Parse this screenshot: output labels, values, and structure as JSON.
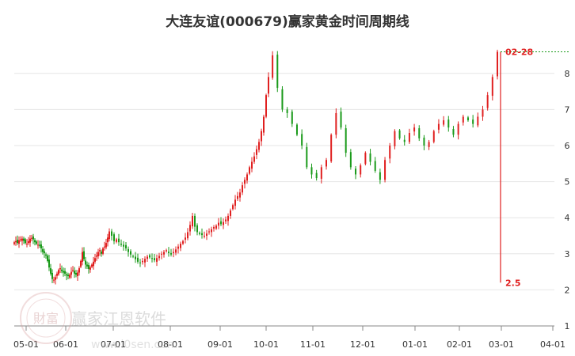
{
  "chart_data": {
    "type": "candlestick",
    "title": "大连友谊(000679)赢家黄金时间周期线",
    "x_ticks": [
      "05-01",
      "06-01",
      "07-01",
      "08-01",
      "09-01",
      "10-01",
      "11-01",
      "12-01",
      "01-01",
      "02-01",
      "03-01",
      "04-01"
    ],
    "y_ticks": [
      "1",
      "2",
      "3",
      "4",
      "5",
      "6",
      "7",
      "8"
    ],
    "ylim": [
      1,
      8.8
    ],
    "grid": "horizontal",
    "colors": {
      "up": "#e02020",
      "down": "#1a9a1a",
      "cycle_line": "#e02020",
      "grid": "#e6e6e6",
      "ref_line": "#1a9a1a"
    },
    "cycle_line": {
      "start_label": "02-28",
      "end_label": "2.5",
      "from_value": 8.6,
      "to_value": 2.2
    },
    "close_series": [
      3.32,
      3.35,
      3.3,
      3.38,
      3.4,
      3.42,
      3.36,
      3.3,
      3.28,
      3.35,
      3.42,
      3.44,
      3.4,
      3.32,
      3.28,
      3.25,
      3.22,
      3.15,
      3.05,
      3.02,
      2.95,
      2.8,
      2.62,
      2.45,
      2.3,
      2.28,
      2.35,
      2.45,
      2.55,
      2.6,
      2.52,
      2.48,
      2.45,
      2.4,
      2.38,
      2.42,
      2.5,
      2.55,
      2.45,
      2.42,
      2.48,
      2.6,
      2.8,
      3.05,
      2.85,
      2.7,
      2.65,
      2.58,
      2.62,
      2.7,
      2.78,
      2.88,
      2.95,
      3.05,
      3.1,
      3.0,
      3.15,
      3.2,
      3.3,
      3.45,
      3.62,
      3.5,
      3.35,
      3.4,
      3.32,
      3.25,
      3.2,
      3.15,
      3.05,
      2.98,
      2.92,
      2.85,
      2.78,
      2.75,
      2.8,
      2.86,
      2.92,
      2.9,
      2.86,
      2.82,
      2.88,
      2.94,
      3.0,
      3.05,
      3.1,
      3.02,
      2.98,
      3.05,
      3.12,
      3.2,
      3.28,
      3.35,
      3.45,
      3.6,
      3.8,
      4.05,
      3.75,
      3.6,
      3.55,
      3.52,
      3.5,
      3.56,
      3.62,
      3.68,
      3.74,
      3.78,
      3.86,
      3.82,
      3.88,
      3.95,
      4.05,
      4.2,
      4.35,
      4.5,
      4.6,
      4.7,
      4.9,
      5.05,
      5.2,
      5.4,
      5.55,
      5.7,
      5.9,
      6.1,
      6.4,
      6.8,
      7.4,
      7.9,
      8.5,
      7.6,
      7.0,
      6.9,
      6.6,
      6.3,
      6.0,
      5.4,
      5.2,
      5.1,
      5.4,
      5.6,
      6.3,
      6.9,
      6.5,
      5.8,
      5.4,
      5.2,
      5.45,
      5.8,
      5.55,
      5.3,
      5.05,
      5.6,
      6.0,
      6.4,
      6.2,
      6.1,
      6.35,
      6.5,
      6.2,
      6.0,
      6.1,
      6.4,
      6.6,
      6.7,
      6.5,
      6.3,
      6.6,
      6.8,
      6.7,
      6.6,
      6.8,
      7.0,
      7.4,
      7.9,
      8.6
    ],
    "x_positions": [
      18,
      20,
      22,
      24,
      26,
      28,
      30,
      32,
      34,
      36,
      38,
      40,
      42,
      44,
      46,
      48,
      50,
      52,
      54,
      56,
      58,
      60,
      62,
      64,
      66,
      68,
      70,
      72,
      74,
      76,
      78,
      80,
      82,
      84,
      86,
      88,
      90,
      92,
      94,
      96,
      98,
      100,
      102,
      104,
      106,
      108,
      110,
      112,
      114,
      116,
      118,
      120,
      122,
      124,
      126,
      128,
      130,
      132,
      134,
      136,
      138,
      141,
      144,
      147,
      150,
      153,
      156,
      159,
      162,
      165,
      168,
      171,
      174,
      177,
      180,
      183,
      186,
      189,
      192,
      195,
      198,
      201,
      204,
      207,
      210,
      213,
      216,
      219,
      222,
      225,
      228,
      231,
      234,
      237,
      240,
      243,
      246,
      249,
      252,
      255,
      258,
      261,
      264,
      267,
      270,
      273,
      276,
      279,
      282,
      285,
      288,
      291,
      294,
      297,
      300,
      303,
      306,
      309,
      312,
      315,
      318,
      321,
      324,
      327,
      330,
      333,
      336,
      339,
      342,
      345,
      348,
      351,
      354,
      357,
      360,
      363,
      366,
      369,
      372,
      375,
      378,
      381,
      384,
      387,
      390,
      393,
      396,
      399,
      402,
      405,
      408,
      411,
      414,
      417,
      420,
      423,
      426,
      429,
      432,
      435,
      438,
      441,
      444,
      447,
      450,
      453,
      456,
      459,
      462,
      465,
      468,
      471,
      474,
      477,
      480
    ]
  },
  "watermark": {
    "text": "赢家江恩软件",
    "url": "www.i0sen.com",
    "seal": "財富"
  }
}
